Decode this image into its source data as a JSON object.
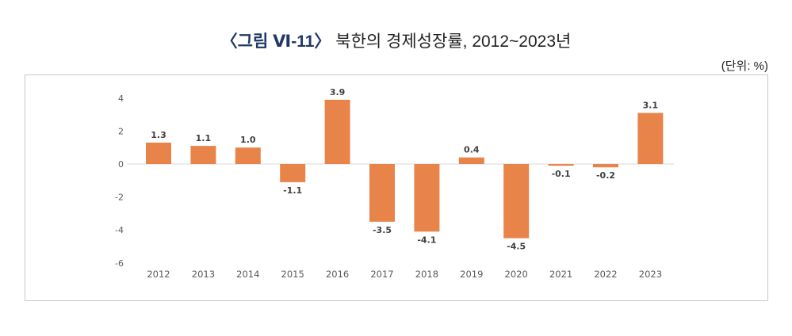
{
  "title_prefix": "〈그림 Ⅵ-11〉",
  "title": "북한의 경제성장률, 2012~2023년",
  "unit": "(단위: %)",
  "chart_data": {
    "type": "bar",
    "categories": [
      "2012",
      "2013",
      "2014",
      "2015",
      "2016",
      "2017",
      "2018",
      "2019",
      "2020",
      "2021",
      "2022",
      "2023"
    ],
    "values": [
      1.3,
      1.1,
      1.0,
      -1.1,
      3.9,
      -3.5,
      -4.1,
      0.4,
      -4.5,
      -0.1,
      -0.2,
      3.1
    ],
    "data_labels": [
      "1.3",
      "1.1",
      "1.0",
      "-1.1",
      "3.9",
      "-3.5",
      "-4.1",
      "0.4",
      "-4.5",
      "-0.1",
      "-0.2",
      "3.1"
    ],
    "yticks": [
      4,
      2,
      0,
      -2,
      -4,
      -6
    ],
    "ylim": [
      -6,
      4
    ],
    "grid": false,
    "bar_color": "#e8834a"
  }
}
